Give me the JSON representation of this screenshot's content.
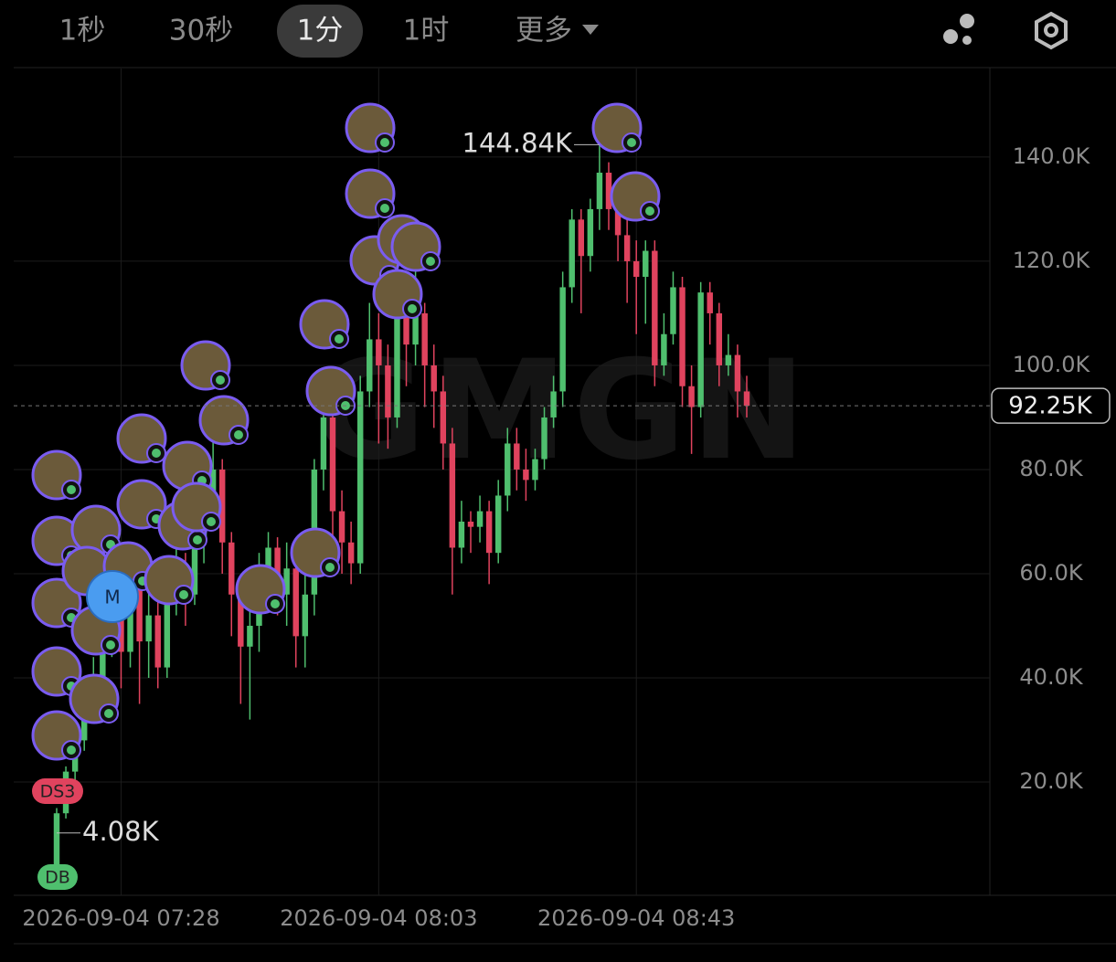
{
  "toolbar": {
    "intervals": [
      "1秒",
      "30秒",
      "1分",
      "1时"
    ],
    "active": 2,
    "more": "更多"
  },
  "chart_data": {
    "type": "candlestick",
    "watermark": "GMGN",
    "categories": [
      null,
      null,
      null,
      null,
      null,
      null,
      null,
      "2026-09-04 07:28",
      null,
      null,
      null,
      null,
      null,
      null,
      null,
      null,
      null,
      null,
      null,
      null,
      null,
      null,
      null,
      null,
      null,
      null,
      null,
      null,
      null,
      null,
      null,
      null,
      null,
      null,
      null,
      "2026-09-04 08:03",
      null,
      null,
      null,
      null,
      null,
      null,
      null,
      null,
      null,
      null,
      null,
      null,
      null,
      null,
      null,
      null,
      null,
      null,
      null,
      null,
      null,
      null,
      null,
      null,
      null,
      null,
      null,
      "2026-09-04 08:43",
      null,
      null,
      null,
      null,
      null,
      null,
      null,
      null,
      null,
      null,
      null,
      null
    ],
    "open": [
      4.08,
      14,
      22,
      28,
      35,
      40,
      46,
      52,
      45,
      58,
      47,
      52,
      42,
      55,
      60,
      56,
      66,
      74,
      80,
      66,
      56,
      46,
      50,
      60,
      65,
      56,
      61,
      48,
      56,
      80,
      90,
      72,
      66,
      62,
      95,
      105,
      100,
      90,
      110,
      104,
      110,
      100,
      95,
      85,
      65,
      70,
      69,
      72,
      64,
      75,
      85,
      80,
      78,
      82,
      90,
      95,
      115,
      128,
      121,
      130,
      137,
      130,
      125,
      120,
      117,
      122,
      100,
      106,
      115,
      96,
      92,
      114,
      110,
      100,
      102,
      95
    ],
    "high": [
      15,
      23,
      30,
      37,
      44,
      50,
      56,
      54,
      62,
      60,
      58,
      55,
      60,
      68,
      64,
      70,
      80,
      86,
      82,
      68,
      58,
      56,
      64,
      68,
      67,
      66,
      63,
      60,
      82,
      92,
      92,
      76,
      70,
      98,
      112,
      110,
      104,
      114,
      114,
      118,
      112,
      104,
      98,
      88,
      74,
      72,
      75,
      74,
      78,
      88,
      88,
      84,
      84,
      92,
      98,
      118,
      130,
      130,
      132,
      144.84,
      139,
      134,
      128,
      124,
      124,
      124,
      110,
      118,
      117,
      100,
      116,
      116,
      112,
      106,
      104,
      98
    ],
    "low": [
      4.08,
      13,
      20,
      26,
      33,
      36,
      44,
      38,
      42,
      35,
      40,
      38,
      40,
      52,
      50,
      54,
      62,
      70,
      60,
      48,
      35,
      32,
      45,
      56,
      52,
      50,
      42,
      42,
      52,
      76,
      66,
      60,
      58,
      60,
      92,
      85,
      84,
      88,
      96,
      100,
      92,
      88,
      80,
      56,
      62,
      64,
      66,
      58,
      62,
      72,
      76,
      74,
      76,
      80,
      88,
      92,
      112,
      110,
      118,
      126,
      126,
      120,
      112,
      106,
      108,
      96,
      98,
      104,
      92,
      83,
      90,
      104,
      96,
      98,
      90,
      90
    ],
    "close": [
      14,
      22,
      28,
      35,
      40,
      46,
      52,
      45,
      58,
      47,
      52,
      42,
      55,
      60,
      56,
      66,
      74,
      80,
      66,
      56,
      46,
      50,
      60,
      65,
      56,
      61,
      48,
      56,
      80,
      90,
      72,
      66,
      62,
      95,
      105,
      100,
      90,
      110,
      104,
      110,
      100,
      95,
      85,
      65,
      70,
      69,
      72,
      64,
      75,
      85,
      80,
      78,
      82,
      90,
      95,
      115,
      128,
      121,
      130,
      137,
      130,
      125,
      120,
      117,
      122,
      100,
      106,
      115,
      96,
      92,
      114,
      110,
      100,
      102,
      95,
      92.25
    ],
    "up_color": "#4fbf6e",
    "down_color": "#e0435e",
    "ylim": [
      -1.75,
      157
    ],
    "yticks": [
      {
        "value": 20,
        "label": "20.0K"
      },
      {
        "value": 40,
        "label": "40.0K"
      },
      {
        "value": 60,
        "label": "60.0K"
      },
      {
        "value": 80,
        "label": "80.0K"
      },
      {
        "value": 100,
        "label": "100.0K"
      },
      {
        "value": 120,
        "label": "120.0K"
      },
      {
        "value": 140,
        "label": "140.0K"
      }
    ],
    "grid": true,
    "current_price": {
      "value": 92.25,
      "label": "92.25K"
    },
    "high_label": {
      "value": 144.84,
      "label": "144.84K"
    },
    "low_label": {
      "value": 4.08,
      "label": "4.08K"
    },
    "markers": [
      "DS3",
      "DB",
      "M"
    ]
  }
}
